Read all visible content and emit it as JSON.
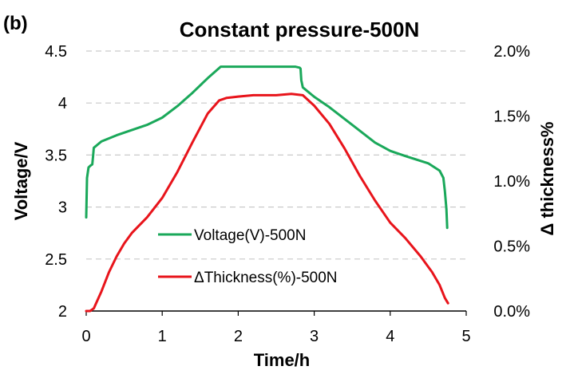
{
  "chart_data": {
    "type": "line",
    "panel_label": "(b)",
    "title": "Constant pressure-500N",
    "xlabel": "Time/h",
    "ylabel": "Voltage/V",
    "y2label": "Δ thickness%",
    "xlim": [
      0,
      5
    ],
    "ylim": [
      2,
      4.5
    ],
    "y2lim": [
      0,
      2.0
    ],
    "x_ticks": [
      "0",
      "1",
      "2",
      "3",
      "4",
      "5"
    ],
    "y_ticks": [
      "2",
      "2.5",
      "3",
      "3.5",
      "4",
      "4.5"
    ],
    "y2_ticks": [
      "0.0%",
      "0.5%",
      "1.0%",
      "1.5%",
      "2.0%"
    ],
    "grid": "horizontal dashed",
    "legend_position": "center",
    "series": [
      {
        "name": "Voltage(V)-500N",
        "axis": "left",
        "color": "#1aa85a",
        "x": [
          0.0,
          0.01,
          0.03,
          0.06,
          0.08,
          0.09,
          0.1,
          0.2,
          0.4,
          0.6,
          0.8,
          1.0,
          1.2,
          1.4,
          1.6,
          1.77,
          1.9,
          2.2,
          2.5,
          2.75,
          2.81,
          2.82,
          2.83,
          2.85,
          3.0,
          3.2,
          3.5,
          3.8,
          4.0,
          4.2,
          4.5,
          4.65,
          4.7,
          4.72,
          4.74,
          4.75
        ],
        "values": [
          2.9,
          3.28,
          3.38,
          3.4,
          3.41,
          3.49,
          3.57,
          3.63,
          3.69,
          3.74,
          3.79,
          3.86,
          3.97,
          4.1,
          4.24,
          4.35,
          4.35,
          4.35,
          4.35,
          4.35,
          4.34,
          4.33,
          4.22,
          4.15,
          4.06,
          3.96,
          3.79,
          3.62,
          3.54,
          3.49,
          3.42,
          3.35,
          3.28,
          3.15,
          2.98,
          2.8
        ]
      },
      {
        "name": "ΔThickness(%)-500N",
        "axis": "right",
        "color": "#e8141b",
        "x": [
          0.0,
          0.05,
          0.1,
          0.2,
          0.3,
          0.4,
          0.5,
          0.6,
          0.8,
          1.0,
          1.2,
          1.4,
          1.6,
          1.75,
          1.85,
          2.0,
          2.2,
          2.5,
          2.7,
          2.85,
          3.0,
          3.2,
          3.4,
          3.6,
          3.8,
          4.0,
          4.2,
          4.4,
          4.55,
          4.65,
          4.72,
          4.76
        ],
        "values": [
          0.0,
          0.0,
          0.02,
          0.15,
          0.3,
          0.42,
          0.52,
          0.6,
          0.72,
          0.87,
          1.07,
          1.3,
          1.52,
          1.62,
          1.64,
          1.65,
          1.66,
          1.66,
          1.67,
          1.66,
          1.58,
          1.44,
          1.25,
          1.04,
          0.85,
          0.68,
          0.56,
          0.42,
          0.3,
          0.2,
          0.1,
          0.06
        ]
      }
    ]
  }
}
